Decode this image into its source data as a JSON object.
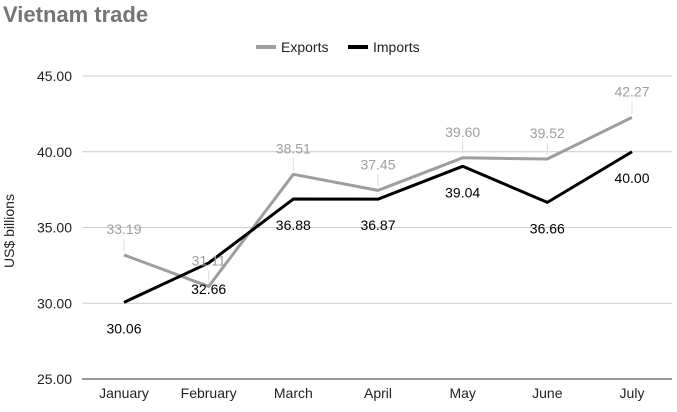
{
  "chart_data": {
    "type": "line",
    "title": "Vietnam trade",
    "ylabel": "US$ billions",
    "xlabel": "",
    "ylim": [
      25,
      45
    ],
    "yticks": [
      "25.00",
      "30.00",
      "35.00",
      "40.00",
      "45.00"
    ],
    "categories": [
      "January",
      "February",
      "March",
      "April",
      "May",
      "June",
      "July"
    ],
    "legend_position": "top-center",
    "grid": true,
    "series": [
      {
        "name": "Exports",
        "color": "#9e9e9e",
        "values": [
          33.19,
          31.11,
          38.51,
          37.45,
          39.6,
          39.52,
          42.27
        ],
        "labels": [
          "33.19",
          "31.11",
          "38.51",
          "37.45",
          "39.60",
          "39.52",
          "42.27"
        ]
      },
      {
        "name": "Imports",
        "color": "#000000",
        "values": [
          30.06,
          32.66,
          36.88,
          36.87,
          39.04,
          36.66,
          40.0
        ],
        "labels": [
          "30.06",
          "32.66",
          "36.88",
          "36.87",
          "39.04",
          "36.66",
          "40.00"
        ]
      }
    ]
  }
}
